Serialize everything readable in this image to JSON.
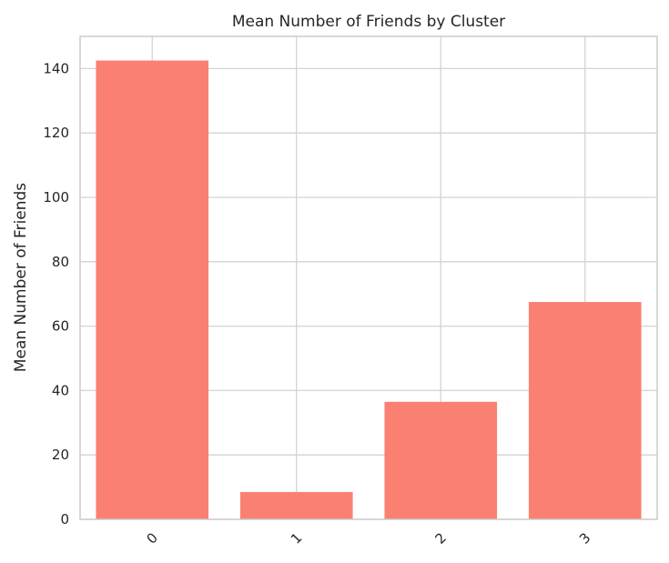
{
  "chart_data": {
    "type": "bar",
    "title": "Mean Number of Friends by Cluster",
    "xlabel": "",
    "ylabel": "Mean Number of Friends",
    "categories": [
      "0",
      "1",
      "2",
      "3"
    ],
    "values": [
      142.5,
      8.5,
      36.5,
      67.5
    ],
    "ylim": [
      0,
      150
    ],
    "yticks": [
      0,
      20,
      40,
      60,
      80,
      100,
      120,
      140
    ],
    "grid": true,
    "legend": "none",
    "colors": {
      "bar": "#fa8072",
      "grid": "#d3d3d3",
      "spine": "#cccccc",
      "text": "#262626"
    }
  }
}
